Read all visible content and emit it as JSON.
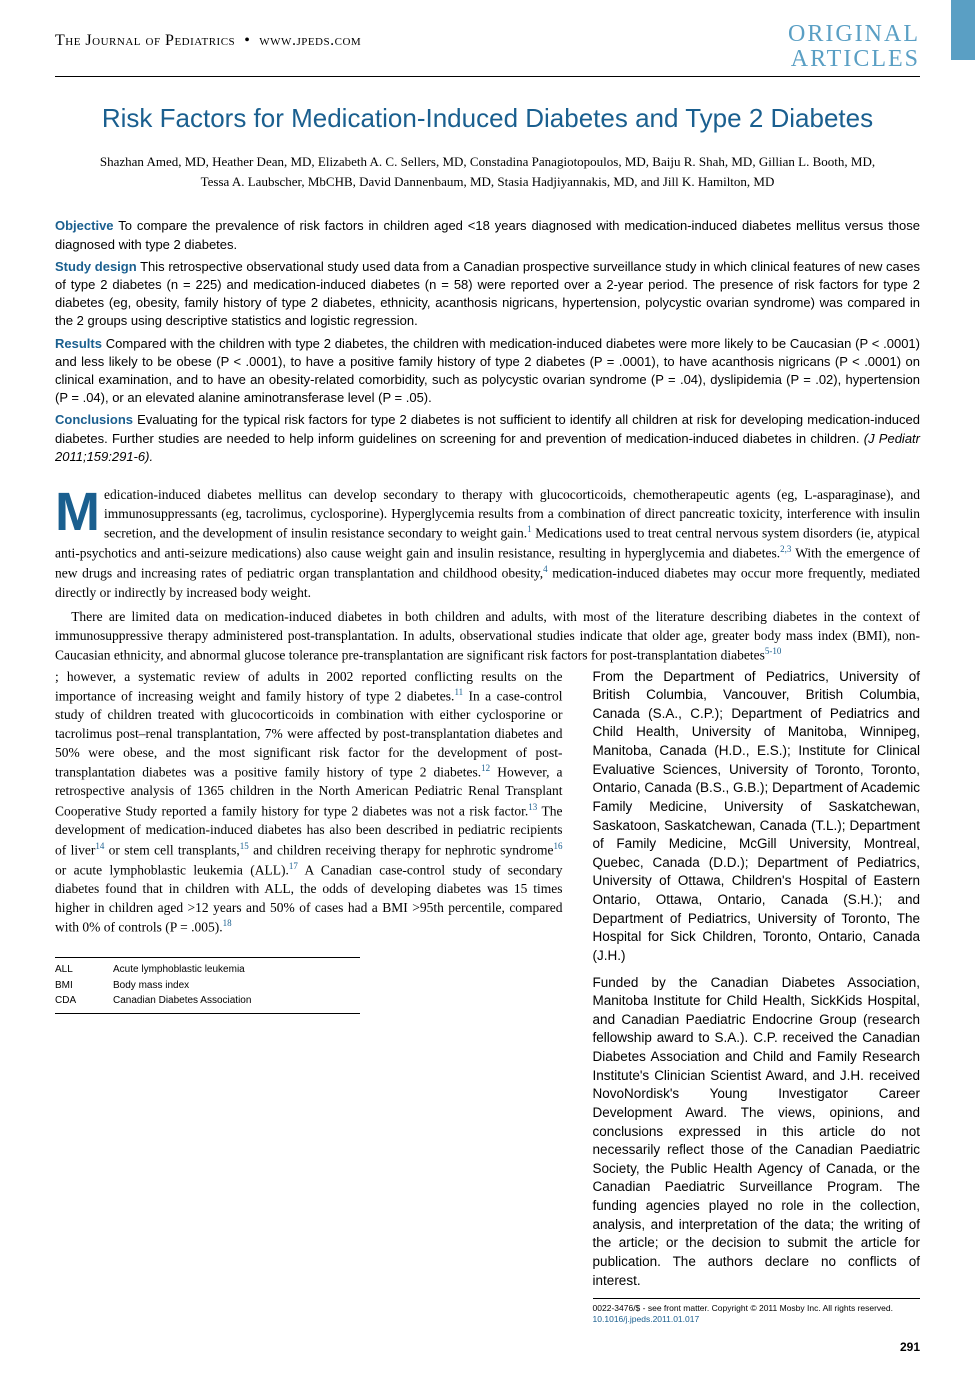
{
  "header": {
    "journal": "The Journal of Pediatrics",
    "site": "www.jpeds.com",
    "section_label_line1": "ORIGINAL",
    "section_label_line2": "ARTICLES"
  },
  "colors": {
    "brand_blue": "#1a5f8f",
    "light_blue": "#5a9fc4",
    "text": "#000000",
    "background": "#ffffff"
  },
  "title": "Risk Factors for Medication-Induced Diabetes and Type 2 Diabetes",
  "authors": "Shazhan Amed, MD, Heather Dean, MD, Elizabeth A. C. Sellers, MD, Constadina Panagiotopoulos, MD, Baiju R. Shah, MD, Gillian L. Booth, MD, Tessa A. Laubscher, MbCHB, David Dannenbaum, MD, Stasia Hadjiyannakis, MD, and Jill K. Hamilton, MD",
  "abstract": {
    "objective_label": "Objective",
    "objective": "To compare the prevalence of risk factors in children aged <18 years diagnosed with medication-induced diabetes mellitus versus those diagnosed with type 2 diabetes.",
    "design_label": "Study design",
    "design": "This retrospective observational study used data from a Canadian prospective surveillance study in which clinical features of new cases of type 2 diabetes (n = 225) and medication-induced diabetes (n = 58) were reported over a 2-year period. The presence of risk factors for type 2 diabetes (eg, obesity, family history of type 2 diabetes, ethnicity, acanthosis nigricans, hypertension, polycystic ovarian syndrome) was compared in the 2 groups using descriptive statistics and logistic regression.",
    "results_label": "Results",
    "results": "Compared with the children with type 2 diabetes, the children with medication-induced diabetes were more likely to be Caucasian (P < .0001) and less likely to be obese (P < .0001), to have a positive family history of type 2 diabetes (P = .0001), to have acanthosis nigricans (P < .0001) on clinical examination, and to have an obesity-related comorbidity, such as polycystic ovarian syndrome (P = .04), dyslipidemia (P = .02), hypertension (P = .04), or an elevated alanine aminotransferase level (P = .05).",
    "conclusions_label": "Conclusions",
    "conclusions": "Evaluating for the typical risk factors for type 2 diabetes is not sufficient to identify all children at risk for developing medication-induced diabetes. Further studies are needed to help inform guidelines on screening for and prevention of medication-induced diabetes in children.",
    "citation": "(J Pediatr 2011;159:291-6)."
  },
  "body": {
    "para1_dropcap": "M",
    "para1_rest": "edication-induced diabetes mellitus can develop secondary to therapy with glucocorticoids, chemotherapeutic agents (eg, L-asparaginase), and immunosuppressants (eg, tacrolimus, cyclosporine). Hyperglycemia results from a combination of direct pancreatic toxicity, interference with insulin secretion, and the development of insulin resistance secondary to weight gain.",
    "para1_after_ref1": " Medications used to treat central nervous system disorders (ie, atypical anti-psychotics and anti-seizure medications) also cause weight gain and insulin resistance, resulting in hyperglycemia and diabetes.",
    "para1_after_ref23": " With the emergence of new drugs and increasing rates of pediatric organ transplantation and childhood obesity,",
    "para1_after_ref4": " medication-induced diabetes may occur more frequently, mediated directly or indirectly by increased body weight.",
    "para2": "There are limited data on medication-induced diabetes in both children and adults, with most of the literature describing diabetes in the context of immunosuppressive therapy administered post-transplantation. In adults, observational studies indicate that older age, greater body mass index (BMI), non-Caucasian ethnicity, and abnormal glucose tolerance pre-transplantation are significant risk factors for post-transplantation diabetes",
    "para2_after_ref510": "; however, a systematic review of adults in 2002 reported conflicting results on the importance of increasing weight and family history of type 2 diabetes.",
    "para2_after_ref11": " In a case-control study of children treated with glucocorticoids in combination with either cyclosporine or tacrolimus post–renal transplantation, 7% were affected by post-transplantation diabetes and 50% were obese, and the most significant risk factor for the development of post-transplantation diabetes was a positive family history of type 2 diabetes.",
    "para2_after_ref12": " However, a retrospective analysis of 1365 children in the North American Pediatric Renal Transplant Cooperative Study reported a family history for type 2 diabetes was not a risk factor.",
    "para2_after_ref13": " The development of medication-induced diabetes has also been described in pediatric recipients of liver",
    "para2_after_ref14": " or stem cell transplants,",
    "para2_after_ref15": " and children receiving therapy for nephrotic syndrome",
    "para2_after_ref16": " or acute lymphoblastic leukemia (ALL).",
    "para2_after_ref17": " A Canadian case-control study of secondary diabetes found that in children with ALL, the odds of developing diabetes was 15 times higher in children aged >12 years and 50% of cases had a BMI >95th percentile, compared with 0% of controls (P = .005).",
    "refs": {
      "r1": "1",
      "r23": "2,3",
      "r4": "4",
      "r510": "5-10",
      "r11": "11",
      "r12": "12",
      "r13": "13",
      "r14": "14",
      "r15": "15",
      "r16": "16",
      "r17": "17",
      "r18": "18"
    }
  },
  "abbreviations": [
    {
      "abbr": "ALL",
      "full": "Acute lymphoblastic leukemia"
    },
    {
      "abbr": "BMI",
      "full": "Body mass index"
    },
    {
      "abbr": "CDA",
      "full": "Canadian Diabetes Association"
    }
  ],
  "affiliations": "From the Department of Pediatrics, University of British Columbia, Vancouver, British Columbia, Canada (S.A., C.P.); Department of Pediatrics and Child Health, University of Manitoba, Winnipeg, Manitoba, Canada (H.D., E.S.); Institute for Clinical Evaluative Sciences, University of Toronto, Toronto, Ontario, Canada (B.S., G.B.); Department of Academic Family Medicine, University of Saskatchewan, Saskatoon, Saskatchewan, Canada (T.L.); Department of Family Medicine, McGill University, Montreal, Quebec, Canada (D.D.); Department of Pediatrics, University of Ottawa, Children's Hospital of Eastern Ontario, Ottawa, Ontario, Canada (S.H.); and Department of Pediatrics, University of Toronto, The Hospital for Sick Children, Toronto, Ontario, Canada (J.H.)",
  "funding": "Funded by the Canadian Diabetes Association, Manitoba Institute for Child Health, SickKids Hospital, and Canadian Paediatric Endocrine Group (research fellowship award to S.A.). C.P. received the Canadian Diabetes Association and Child and Family Research Institute's Clinician Scientist Award, and J.H. received NovoNordisk's Young Investigator Career Development Award. The views, opinions, and conclusions expressed in this article do not necessarily reflect those of the Canadian Paediatric Society, the Public Health Agency of Canada, or the Canadian Paediatric Surveillance Program. The funding agencies played no role in the collection, analysis, and interpretation of the data; the writing of the article; or the decision to submit the article for publication. The authors declare no conflicts of interest.",
  "copyright_line": "0022-3476/$ - see front matter. Copyright © 2011 Mosby Inc. All rights reserved.",
  "doi": "10.1016/j.jpeds.2011.01.017",
  "page_number": "291"
}
